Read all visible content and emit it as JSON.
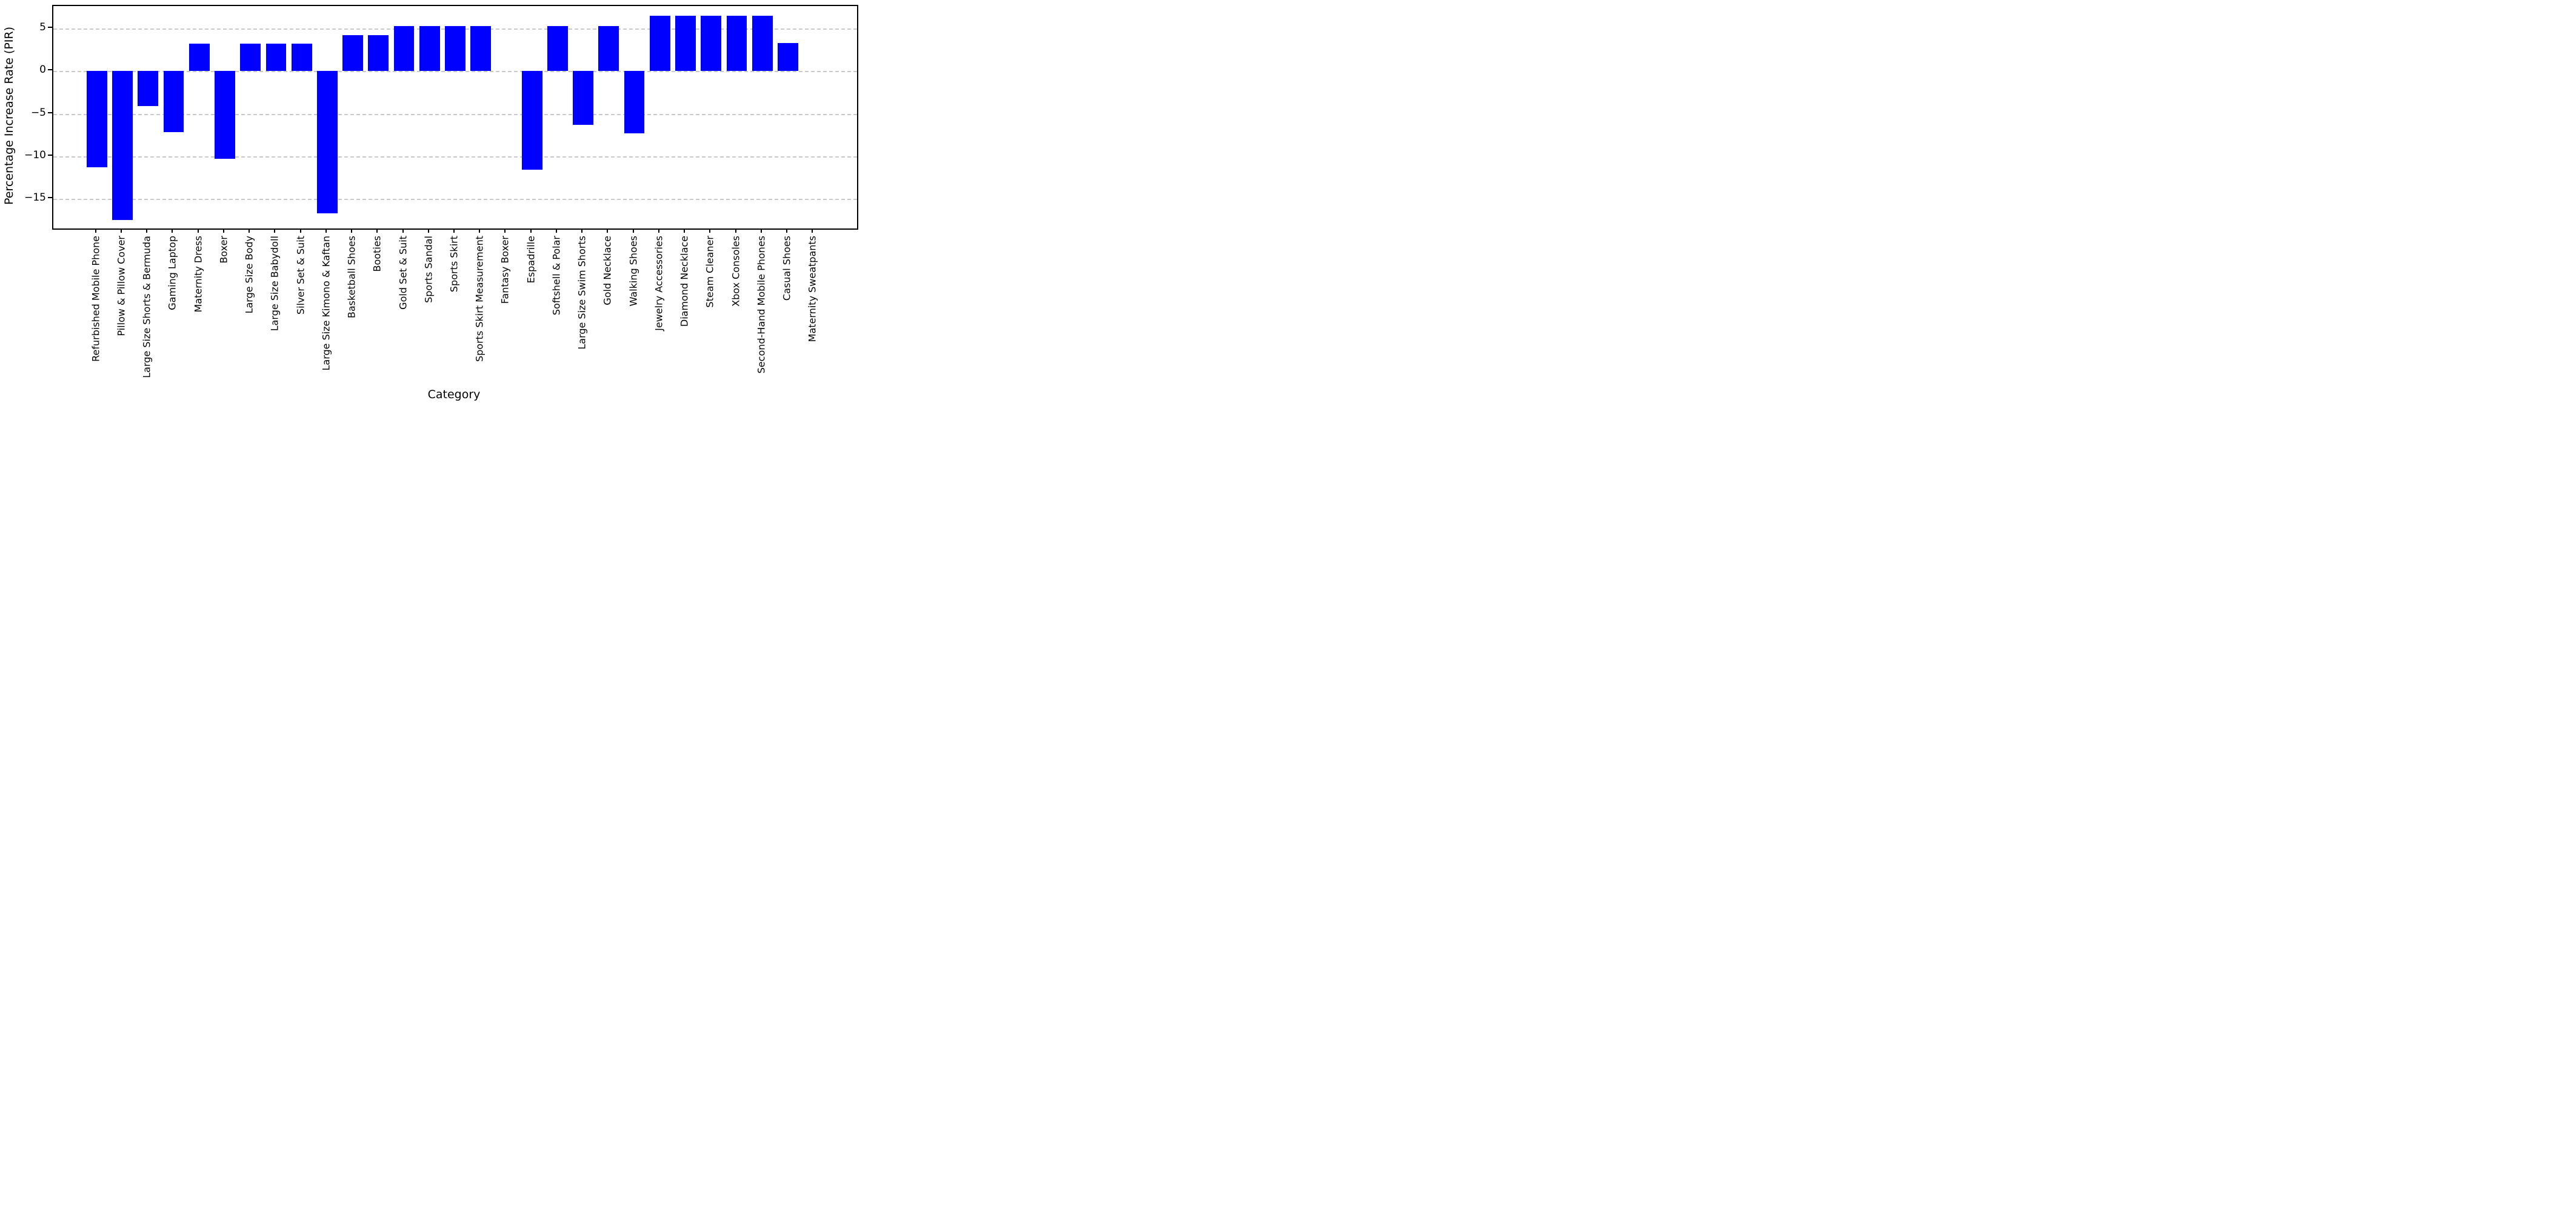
{
  "figure": {
    "background_color": "#ffffff",
    "axis_color": "#000000",
    "gridline_color": "#c9c9c9",
    "gridline_style": "dashed"
  },
  "chart_data": {
    "type": "bar",
    "title": "",
    "xlabel": "Category",
    "ylabel": "Percentage Increase Rate (PIR)",
    "bar_color": "#0000ff",
    "grid": "horizontal dashed gridlines at each y tick",
    "legend": "none",
    "x_tick_rotation": 90,
    "yticks": [
      5,
      0,
      -5,
      -10,
      -15
    ],
    "ylim": [
      -18.5,
      7.65
    ],
    "categories": [
      "Refurbished Mobile Phone",
      "Pillow & Pillow Cover",
      "Large Size Shorts & Bermuda",
      "Gaming Laptop",
      "Maternity Dress",
      "Boxer",
      "Large Size Body",
      "Large Size Babydoll",
      "Silver Set & Suit",
      "Large Size Kimono & Kaftan",
      "Basketball Shoes",
      "Booties",
      "Gold Set & Suit",
      "Sports Sandal",
      "Sports Skirt",
      "Sports Skirt Measurement",
      "Fantasy Boxer",
      "Espadrille",
      "Softshell & Polar",
      "Large Size Swim Shorts",
      "Gold Necklace",
      "Walking Shoes",
      "Jewelry Accessories",
      "Diamond Necklace",
      "Steam Cleaner",
      "Xbox Consoles",
      "Second-Hand Mobile Phones",
      "Casual Shoes",
      "Maternity Sweatpants"
    ],
    "values": [
      -11.3,
      -17.5,
      -4.1,
      -7.2,
      3.2,
      -10.3,
      3.2,
      3.2,
      3.2,
      -16.7,
      4.2,
      4.2,
      5.3,
      5.3,
      5.3,
      5.3,
      0,
      -11.6,
      5.3,
      -6.3,
      5.3,
      -7.3,
      6.5,
      6.5,
      6.5,
      6.5,
      6.5,
      3.3,
      0
    ]
  }
}
